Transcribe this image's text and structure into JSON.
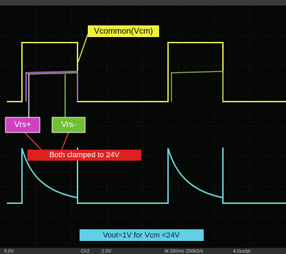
{
  "annotations": {
    "vcm": "Vcommon(Vcm)",
    "vrs_plus": "Vrs+",
    "vrs_minus": "Vrs-",
    "clamped": "Both clamped to 24V",
    "vout": "Vout=1V for Vcm <24V"
  },
  "status_bar": [
    "5.0V",
    "Ch2",
    "2.0V",
    "M 200ms 250kS/s",
    "4.0us/pt"
  ]
}
